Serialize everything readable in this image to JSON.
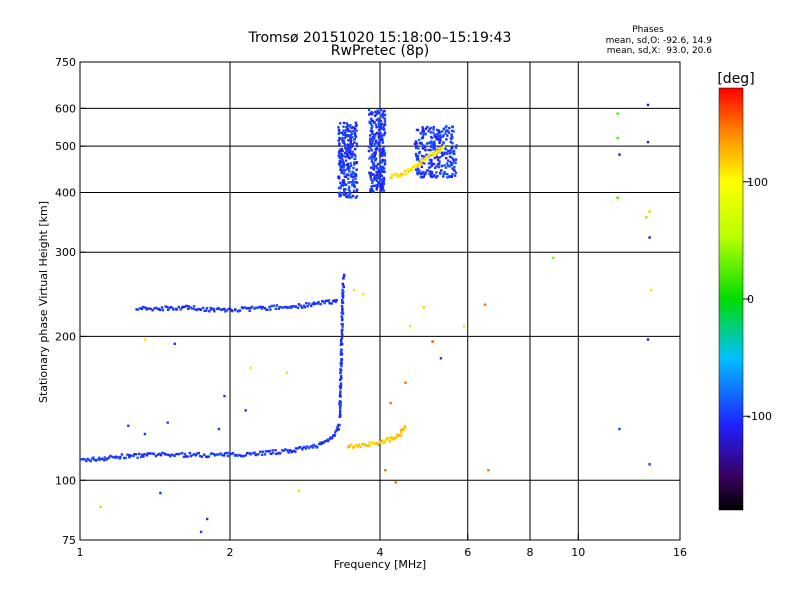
{
  "chart_data": {
    "type": "scatter",
    "title": "Tromsø 20151020 15:18:00–15:19:43",
    "subtitle": "RwPretec (8p)",
    "xlabel": "Frequency [MHz]",
    "ylabel": "Stationary phase Virtual Height [km]",
    "x_scale": "log",
    "y_scale": "log",
    "xlim": [
      1,
      16
    ],
    "ylim": [
      75,
      750
    ],
    "grid": true,
    "x_ticks": [
      1,
      2,
      4,
      6,
      8,
      10,
      16
    ],
    "x_tick_labels": [
      "1",
      "2",
      "4",
      "6",
      "8",
      "10",
      "16"
    ],
    "x_grid": [
      2,
      4,
      6,
      8,
      10
    ],
    "y_ticks": [
      75,
      100,
      200,
      300,
      400,
      500,
      600,
      750
    ],
    "y_tick_labels": [
      "75",
      "100",
      "200",
      "300",
      "400",
      "500",
      "600",
      "750"
    ],
    "y_grid": [
      100,
      200,
      300,
      400,
      500,
      600
    ],
    "stats": {
      "heading": "Phases",
      "line1": "mean, sd,O: -92.6, 14.9",
      "line2": "mean, sd,X:  93.0, 20.6"
    },
    "colorbar": {
      "label": "[deg]",
      "range": [
        -180,
        180
      ],
      "ticks": [
        100,
        0,
        -100
      ],
      "tick_labels": [
        "100",
        "0",
        "-100"
      ]
    },
    "series": [
      {
        "color_deg": -100,
        "segments": [
          {
            "x": [
              1.0,
              1.1,
              1.2,
              1.4,
              1.6,
              1.8,
              2.0,
              2.3,
              2.6,
              2.9,
              3.1,
              3.25,
              3.32
            ],
            "y": [
              110,
              111,
              112,
              113,
              113,
              113,
              113,
              114,
              115,
              117,
              120,
              125,
              131
            ]
          },
          {
            "x": [
              3.32,
              3.34,
              3.36,
              3.38
            ],
            "y": [
              135,
              170,
              220,
              270
            ]
          },
          {
            "x": [
              1.3,
              1.45,
              1.6,
              1.8,
              2.0,
              2.3,
              2.7,
              3.0,
              3.3
            ],
            "y": [
              228,
              229,
              230,
              228,
              227,
              229,
              231,
              234,
              238
            ]
          }
        ]
      },
      {
        "color_deg": 120,
        "segments": [
          {
            "x": [
              3.45,
              3.6,
              3.8,
              4.0,
              4.2,
              4.4,
              4.5
            ],
            "y": [
              118,
              118,
              119,
              120,
              122,
              125,
              130
            ]
          }
        ]
      },
      {
        "color_deg": -100,
        "clusters": [
          {
            "x": [
              3.8,
              4.1
            ],
            "y": [
              400,
              600
            ]
          },
          {
            "x": [
              3.3,
              3.6
            ],
            "y": [
              390,
              560
            ]
          },
          {
            "x": [
              4.7,
              5.7
            ],
            "y": [
              430,
              550
            ]
          }
        ]
      },
      {
        "color_deg": 110,
        "segments": [
          {
            "x": [
              4.2,
              4.5,
              4.8,
              5.1,
              5.4
            ],
            "y": [
              430,
              440,
              460,
              480,
              500
            ]
          }
        ]
      }
    ],
    "scattered_points": [
      {
        "x": 1.25,
        "y": 130,
        "deg": -100
      },
      {
        "x": 1.35,
        "y": 125,
        "deg": -100
      },
      {
        "x": 1.5,
        "y": 132,
        "deg": -100
      },
      {
        "x": 1.9,
        "y": 128,
        "deg": -100
      },
      {
        "x": 1.95,
        "y": 150,
        "deg": -100
      },
      {
        "x": 2.15,
        "y": 140,
        "deg": -100
      },
      {
        "x": 1.8,
        "y": 83,
        "deg": -100
      },
      {
        "x": 1.75,
        "y": 78,
        "deg": -100
      },
      {
        "x": 1.35,
        "y": 197,
        "deg": 110
      },
      {
        "x": 1.55,
        "y": 193,
        "deg": -100
      },
      {
        "x": 2.2,
        "y": 172,
        "deg": 110
      },
      {
        "x": 2.6,
        "y": 168,
        "deg": 50
      },
      {
        "x": 2.75,
        "y": 95,
        "deg": 50
      },
      {
        "x": 1.1,
        "y": 88,
        "deg": 120
      },
      {
        "x": 1.45,
        "y": 94,
        "deg": -100
      },
      {
        "x": 3.55,
        "y": 250,
        "deg": 110
      },
      {
        "x": 3.7,
        "y": 245,
        "deg": 110
      },
      {
        "x": 4.6,
        "y": 210,
        "deg": 110
      },
      {
        "x": 4.9,
        "y": 230,
        "deg": 120
      },
      {
        "x": 5.1,
        "y": 195,
        "deg": 160
      },
      {
        "x": 5.3,
        "y": 180,
        "deg": -100
      },
      {
        "x": 4.1,
        "y": 105,
        "deg": 150
      },
      {
        "x": 4.3,
        "y": 99,
        "deg": 150
      },
      {
        "x": 4.2,
        "y": 145,
        "deg": 150
      },
      {
        "x": 4.5,
        "y": 160,
        "deg": 150
      },
      {
        "x": 5.9,
        "y": 210,
        "deg": 110
      },
      {
        "x": 6.5,
        "y": 233,
        "deg": 150
      },
      {
        "x": 6.6,
        "y": 105,
        "deg": 150
      },
      {
        "x": 8.9,
        "y": 292,
        "deg": 40
      },
      {
        "x": 12.0,
        "y": 585,
        "deg": 20
      },
      {
        "x": 12.0,
        "y": 520,
        "deg": 20
      },
      {
        "x": 12.1,
        "y": 480,
        "deg": -120
      },
      {
        "x": 12.0,
        "y": 390,
        "deg": 20
      },
      {
        "x": 12.1,
        "y": 128,
        "deg": -100
      },
      {
        "x": 13.8,
        "y": 610,
        "deg": -120
      },
      {
        "x": 13.8,
        "y": 510,
        "deg": -120
      },
      {
        "x": 13.9,
        "y": 365,
        "deg": 120
      },
      {
        "x": 13.7,
        "y": 355,
        "deg": 40
      },
      {
        "x": 13.9,
        "y": 322,
        "deg": -120
      },
      {
        "x": 14.0,
        "y": 250,
        "deg": 60
      },
      {
        "x": 13.8,
        "y": 197,
        "deg": -120
      },
      {
        "x": 13.9,
        "y": 108,
        "deg": -100
      }
    ]
  }
}
